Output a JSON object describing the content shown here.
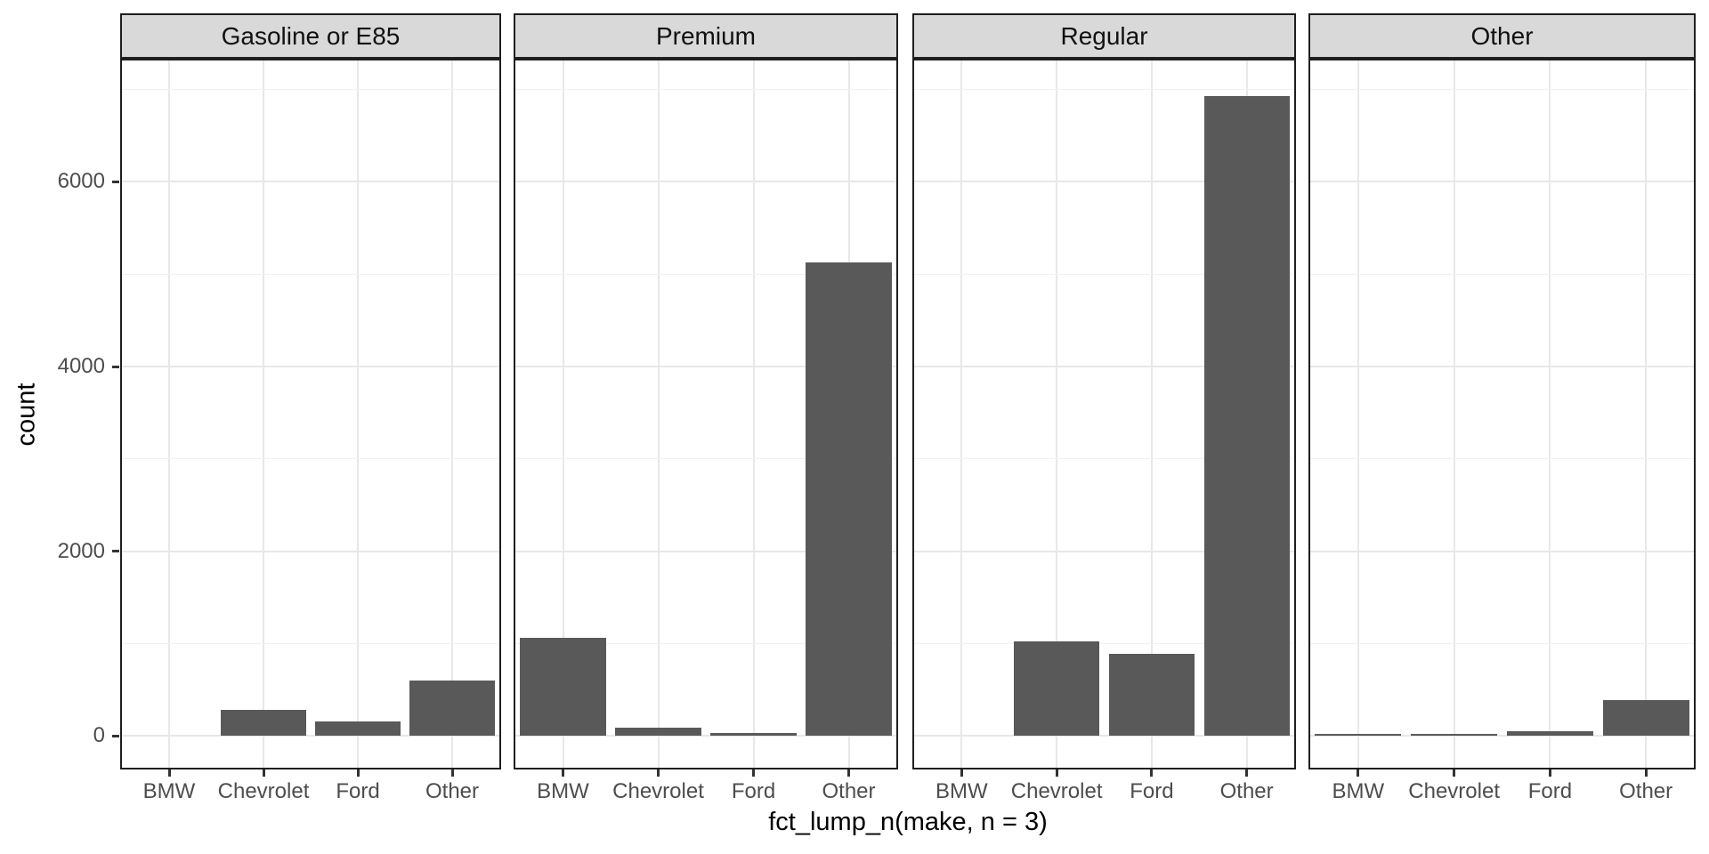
{
  "chart_data": {
    "type": "bar",
    "title": "",
    "facets": [
      "Gasoline or E85",
      "Premium",
      "Regular",
      "Other"
    ],
    "categories": [
      "BMW",
      "Chevrolet",
      "Ford",
      "Other"
    ],
    "series": [
      {
        "facet": "Gasoline or E85",
        "values": [
          0,
          280,
          155,
          600
        ]
      },
      {
        "facet": "Premium",
        "values": [
          1060,
          90,
          30,
          5130
        ]
      },
      {
        "facet": "Regular",
        "values": [
          0,
          1025,
          890,
          6930
        ]
      },
      {
        "facet": "Other",
        "values": [
          20,
          20,
          48,
          390
        ]
      }
    ],
    "xlabel": "fct_lump_n(make, n = 3)",
    "ylabel": "count",
    "y_ticks": [
      0,
      2000,
      4000,
      6000
    ],
    "y_minor_ticks": [
      1000,
      3000,
      5000,
      7000
    ],
    "ylim": [
      -345,
      7315
    ],
    "grid": true,
    "legend_position": "none",
    "colors": {
      "bar": "#595959",
      "strip_fill": "#d9d9d9",
      "panel_border": "#1f1f1f",
      "grid_major": "#e8e8e8",
      "grid_minor": "#f2f2f2",
      "tick_label": "#4d4d4d",
      "axis_title": "#000000",
      "background": "#ffffff"
    }
  }
}
